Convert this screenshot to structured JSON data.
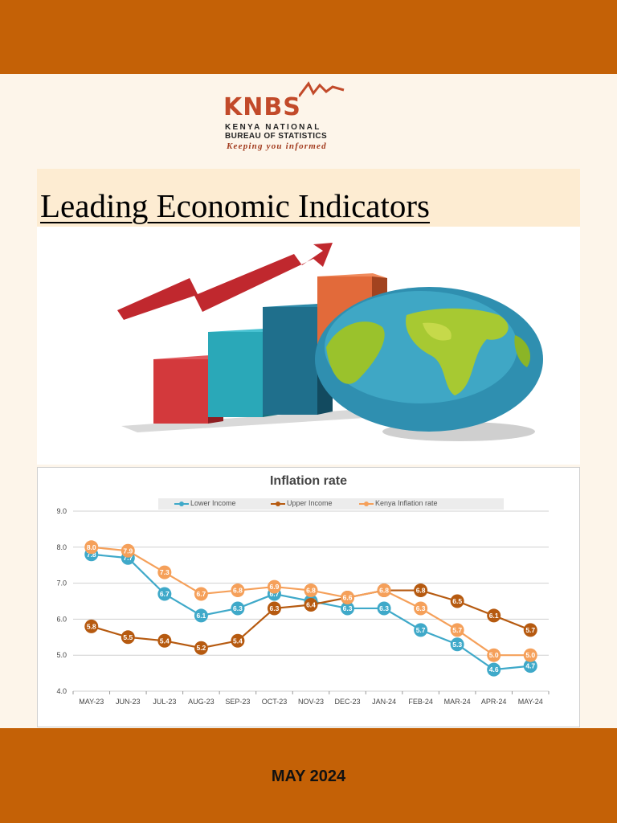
{
  "logo": {
    "mark": "KNBS",
    "line1": "KENYA NATIONAL",
    "line2": "BUREAU OF STATISTICS",
    "tagline": "Keeping you informed"
  },
  "title": "Leading Economic Indicators",
  "date": "MAY 2024",
  "colors": {
    "band": "#c46106",
    "lower": "#3fa9c9",
    "upper": "#b65a10",
    "kenya": "#f5a05a"
  },
  "chart_data": {
    "type": "line",
    "title": "Inflation rate",
    "categories": [
      "MAY-23",
      "JUN-23",
      "JUL-23",
      "AUG-23",
      "SEP-23",
      "OCT-23",
      "NOV-23",
      "DEC-23",
      "JAN-24",
      "FEB-24",
      "MAR-24",
      "APR-24",
      "MAY-24"
    ],
    "ylim": [
      4.0,
      9.0
    ],
    "yticks": [
      "4.0",
      "5.0",
      "6.0",
      "7.0",
      "8.0",
      "9.0"
    ],
    "grid": true,
    "legend": "top",
    "series": [
      {
        "name": "Lower Income",
        "color": "#3fa9c9",
        "values": [
          7.8,
          7.7,
          6.7,
          6.1,
          6.3,
          6.7,
          6.5,
          6.3,
          6.3,
          5.7,
          5.3,
          4.6,
          4.7
        ]
      },
      {
        "name": "Upper Income",
        "color": "#b65a10",
        "values": [
          5.8,
          5.5,
          5.4,
          5.2,
          5.4,
          6.3,
          6.4,
          6.6,
          6.8,
          6.8,
          6.5,
          6.1,
          5.7
        ]
      },
      {
        "name": "Kenya Inflation rate",
        "color": "#f5a05a",
        "values": [
          8.0,
          7.9,
          7.3,
          6.7,
          6.8,
          6.9,
          6.8,
          6.6,
          6.8,
          6.3,
          5.7,
          5.0,
          5.0
        ]
      }
    ]
  }
}
